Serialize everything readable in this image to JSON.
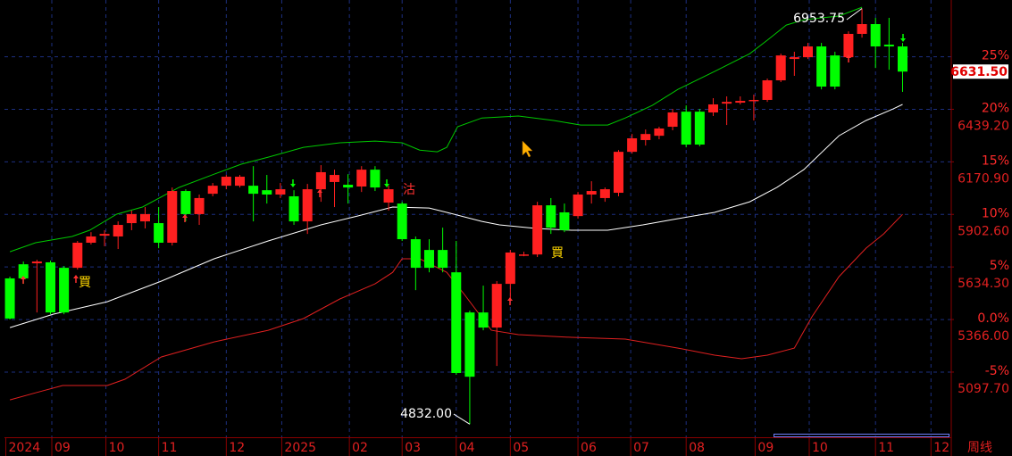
{
  "chart_data": {
    "type": "candlestick",
    "up_color": "#ff2020",
    "down_color": "#00ff00",
    "grid": true,
    "xlim": [
      -0.4,
      69.6
    ],
    "xticks": [
      {
        "value": -0.3,
        "label": "2024"
      },
      {
        "value": 3.1,
        "label": "09"
      },
      {
        "value": 7.1,
        "label": "10"
      },
      {
        "value": 11,
        "label": "11"
      },
      {
        "value": 16,
        "label": "12"
      },
      {
        "value": 20.1,
        "label": "2025"
      },
      {
        "value": 25.1,
        "label": "02"
      },
      {
        "value": 29,
        "label": "03"
      },
      {
        "value": 33,
        "label": "04"
      },
      {
        "value": 37,
        "label": "05"
      },
      {
        "value": 42,
        "label": "06"
      },
      {
        "value": 45.9,
        "label": "07"
      },
      {
        "value": 50,
        "label": "08"
      },
      {
        "value": 55.1,
        "label": "09"
      },
      {
        "value": 59.1,
        "label": "10"
      },
      {
        "value": 64,
        "label": "11"
      },
      {
        "value": 68.1,
        "label": "12"
      }
    ],
    "period_label": "周线",
    "ylim": [
      4765,
      6997
    ],
    "yticks": [
      {
        "value": 6439.2,
        "label": "6439.20"
      },
      {
        "value": 6170.9,
        "label": "6170.90"
      },
      {
        "value": 5902.6,
        "label": "5902.60"
      },
      {
        "value": 5634.3,
        "label": "5634.30"
      },
      {
        "value": 5366,
        "label": "5366.00"
      },
      {
        "value": 5097.7,
        "label": "5097.70"
      }
    ],
    "y2lim": [
      -11.2,
      30.4
    ],
    "y2ticks": [
      {
        "value": 25,
        "label": "25%"
      },
      {
        "value": 20,
        "label": "20%"
      },
      {
        "value": 15,
        "label": "15%"
      },
      {
        "value": 10,
        "label": "10%"
      },
      {
        "value": 5,
        "label": "5%"
      },
      {
        "value": 0,
        "label": "0.0%"
      },
      {
        "value": -5,
        "label": "-5%"
      }
    ],
    "last_price": {
      "value": 6631.5,
      "label": "6631.50"
    },
    "high_label": {
      "value": 6953.75,
      "label": "6953.75"
    },
    "low_label": {
      "value": 4832,
      "label": "4832.00"
    },
    "annotations": [
      "買",
      "沽",
      "買"
    ],
    "candles": {
      "open": [
        5576,
        5648,
        5653,
        5658,
        5630,
        5630,
        5758,
        5794,
        5790,
        5858,
        5867,
        5858,
        5758,
        6022,
        5904,
        6008,
        6049,
        6049,
        6049,
        6026,
        6004,
        5995,
        5867,
        6031,
        6068,
        6054,
        6045,
        6131,
        5963,
        5958,
        5776,
        5721,
        5721,
        5607,
        5402,
        5402,
        5325,
        5548,
        5694,
        5698,
        5949,
        5913,
        5894,
        6004,
        5986,
        6013,
        6222,
        6282,
        6304,
        6350,
        6427,
        6427,
        6423,
        6468,
        6473,
        6482,
        6487,
        6587,
        6696,
        6705,
        6760,
        6714,
        6705,
        6824,
        6874,
        6769,
        6760
      ],
      "high": [
        5585,
        5662,
        5671,
        5667,
        5639,
        5767,
        5812,
        5822,
        5867,
        5922,
        5940,
        5940,
        6040,
        6031,
        6004,
        6063,
        6104,
        6104,
        6149,
        6104,
        6063,
        6026,
        6058,
        6154,
        6131,
        6108,
        6149,
        6149,
        6049,
        5967,
        5790,
        5776,
        5835,
        5767,
        5411,
        5539,
        5562,
        5721,
        5712,
        5967,
        5986,
        5958,
        6017,
        6072,
        6040,
        6231,
        6313,
        6336,
        6350,
        6441,
        6459,
        6441,
        6496,
        6505,
        6505,
        6514,
        6596,
        6723,
        6733,
        6778,
        6778,
        6733,
        6837,
        6953.75,
        6906,
        6906,
        6778
      ],
      "low": [
        5366,
        5548,
        5402,
        5393,
        5393,
        5621,
        5749,
        5740,
        5726,
        5822,
        5831,
        5730,
        5744,
        5867,
        5849,
        5995,
        6031,
        6040,
        5867,
        5958,
        5986,
        5849,
        5803,
        5967,
        5940,
        5958,
        6017,
        6022,
        5922,
        5767,
        5516,
        5607,
        5607,
        5084,
        4832,
        5311,
        5129,
        5466,
        5689,
        5685,
        5803,
        5812,
        5881,
        5958,
        5967,
        5995,
        6213,
        6254,
        6286,
        6332,
        6245,
        6250,
        6405,
        6359,
        6464,
        6382,
        6477,
        6578,
        6610,
        6696,
        6541,
        6541,
        6678,
        6805,
        6650,
        6641,
        6528
      ],
      "close": [
        5371,
        5576,
        5662,
        5402,
        5402,
        5758,
        5790,
        5803,
        5849,
        5904,
        5904,
        5758,
        6022,
        5904,
        5986,
        6049,
        6095,
        6095,
        6008,
        6004,
        6031,
        5867,
        6031,
        6118,
        6104,
        6040,
        6131,
        6040,
        6031,
        5776,
        5630,
        5630,
        5630,
        5093,
        5074,
        5325,
        5548,
        5708,
        5698,
        5949,
        5835,
        5822,
        6004,
        6022,
        6031,
        6222,
        6291,
        6313,
        6341,
        6423,
        6259,
        6259,
        6464,
        6477,
        6482,
        6487,
        6587,
        6714,
        6705,
        6760,
        6555,
        6555,
        6824,
        6874,
        6760,
        6760,
        6631.5
      ]
    },
    "bands": [
      {
        "color": "#00c800",
        "x": [
          0,
          1.9,
          4.6,
          5.9,
          7.9,
          9.8,
          12.5,
          15.1,
          17.1,
          19.1,
          21.7,
          24.4,
          27,
          29,
          30.3,
          31.6,
          32.3,
          33.1,
          34.9,
          37.6,
          40.2,
          42.2,
          44.2,
          45.5,
          47.5,
          49.4,
          52.1,
          54.7,
          56,
          57.4,
          58.7,
          60,
          61.3,
          62.3,
          63
        ],
        "values": [
          5712,
          5758,
          5790,
          5822,
          5904,
          5940,
          6040,
          6108,
          6159,
          6195,
          6245,
          6268,
          6277,
          6268,
          6231,
          6222,
          6245,
          6350,
          6395,
          6405,
          6382,
          6359,
          6359,
          6395,
          6459,
          6541,
          6632,
          6723,
          6792,
          6869,
          6896,
          6906,
          6915,
          6942,
          6960
        ]
      },
      {
        "color": "#ffffff",
        "x": [
          0,
          3.2,
          7.2,
          11.2,
          15.1,
          19.1,
          23,
          25.7,
          28.3,
          31,
          32.3,
          34.9,
          36.2,
          38.9,
          41.5,
          44.2,
          46.8,
          49.4,
          52.1,
          54.7,
          56.7,
          58.7,
          61.3,
          63.3,
          65.3,
          66
        ],
        "values": [
          5325,
          5393,
          5457,
          5562,
          5676,
          5767,
          5849,
          5894,
          5940,
          5935,
          5913,
          5867,
          5849,
          5831,
          5822,
          5822,
          5849,
          5881,
          5913,
          5967,
          6040,
          6131,
          6304,
          6382,
          6441,
          6464
        ]
      },
      {
        "color": "#e02020",
        "x": [
          0,
          1.9,
          3.9,
          7.2,
          8.5,
          11.2,
          15.1,
          19.1,
          21.7,
          24.4,
          27,
          28.3,
          29,
          30.3,
          32.3,
          33.6,
          35.6,
          37.6,
          41.5,
          45.5,
          49.4,
          52.1,
          54.1,
          56,
          58,
          59.3,
          61.3,
          63.3,
          64.6,
          66
        ],
        "values": [
          4956,
          4992,
          5029,
          5029,
          5061,
          5175,
          5252,
          5311,
          5371,
          5471,
          5548,
          5607,
          5676,
          5676,
          5607,
          5494,
          5311,
          5289,
          5275,
          5266,
          5220,
          5184,
          5166,
          5184,
          5220,
          5380,
          5585,
          5730,
          5803,
          5903
        ]
      }
    ]
  }
}
